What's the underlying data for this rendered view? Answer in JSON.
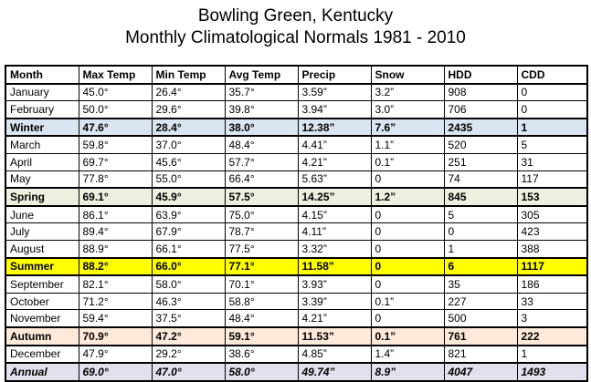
{
  "title": {
    "line1": "Bowling Green,  Kentucky",
    "line2": "Monthly Climatological Normals 1981 - 2010"
  },
  "headers": [
    "Month",
    "Max Temp",
    "Min Temp",
    "Avg Temp",
    "Precip",
    "Snow",
    "HDD",
    "CDD"
  ],
  "rows": [
    {
      "kind": "month",
      "cells": [
        "January",
        "45.0°",
        "26.4°",
        "35.7°",
        "3.59”",
        "3.2”",
        "908",
        "0"
      ]
    },
    {
      "kind": "month",
      "cells": [
        "February",
        "50.0°",
        "29.6°",
        "39.8°",
        "3.94”",
        "3.0”",
        "706",
        "0"
      ]
    },
    {
      "kind": "winter",
      "cells": [
        "Winter",
        "47.6°",
        "28.4°",
        "38.0°",
        "12.38”",
        "7.6”",
        "2435",
        "1"
      ]
    },
    {
      "kind": "month",
      "cells": [
        "March",
        "59.8°",
        "37.0°",
        "48.4°",
        "4.41”",
        "1.1”",
        "520",
        "5"
      ]
    },
    {
      "kind": "month",
      "cells": [
        "April",
        "69.7°",
        "45.6°",
        "57.7°",
        "4.21”",
        "0.1”",
        "251",
        "31"
      ]
    },
    {
      "kind": "month",
      "cells": [
        "May",
        "77.8°",
        "55.0°",
        "66.4°",
        "5.63”",
        "0",
        "74",
        "117"
      ]
    },
    {
      "kind": "spring",
      "cells": [
        "Spring",
        "69.1°",
        "45.9°",
        "57.5°",
        "14.25”",
        "1.2”",
        "845",
        "153"
      ]
    },
    {
      "kind": "month",
      "cells": [
        "June",
        "86.1°",
        "63.9°",
        "75.0°",
        "4.15”",
        "0",
        "5",
        "305"
      ]
    },
    {
      "kind": "month",
      "cells": [
        "July",
        "89.4°",
        "67.9°",
        "78.7°",
        "4.11”",
        "0",
        "0",
        "423"
      ]
    },
    {
      "kind": "month",
      "cells": [
        "August",
        "88.9°",
        "66.1°",
        "77.5°",
        "3.32”",
        "0",
        "1",
        "388"
      ]
    },
    {
      "kind": "summer",
      "cells": [
        "Summer",
        "88.2°",
        "66.0°",
        "77.1°",
        "11.58”",
        "0",
        "6",
        "1117"
      ]
    },
    {
      "kind": "month",
      "cells": [
        "September",
        "82.1°",
        "58.0°",
        "70.1°",
        "3.93”",
        "0",
        "35",
        "186"
      ]
    },
    {
      "kind": "month",
      "cells": [
        "October",
        "71.2°",
        "46.3°",
        "58.8°",
        "3.39”",
        "0.1”",
        "227",
        "33"
      ]
    },
    {
      "kind": "month",
      "cells": [
        "November",
        "59.4°",
        "37.5°",
        "48.4°",
        "4.21”",
        "0",
        "500",
        "3"
      ]
    },
    {
      "kind": "autumn",
      "cells": [
        "Autumn",
        "70.9°",
        "47.2°",
        "59.1°",
        "11.53”",
        "0.1”",
        "761",
        "222"
      ]
    },
    {
      "kind": "month",
      "cells": [
        "December",
        "47.9°",
        "29.2°",
        "38.6°",
        "4.85”",
        "1.4”",
        "821",
        "1"
      ]
    },
    {
      "kind": "annual",
      "cells": [
        "Annual",
        "69.0°",
        "47.0°",
        "58.0°",
        "49.74”",
        "8.9”",
        "4047",
        "1493"
      ]
    }
  ],
  "colors": {
    "winter": "#dbe5f1",
    "spring": "#ebf1de",
    "summer": "#ffff00",
    "autumn": "#fde9d9",
    "annual": "#e4dfec"
  }
}
